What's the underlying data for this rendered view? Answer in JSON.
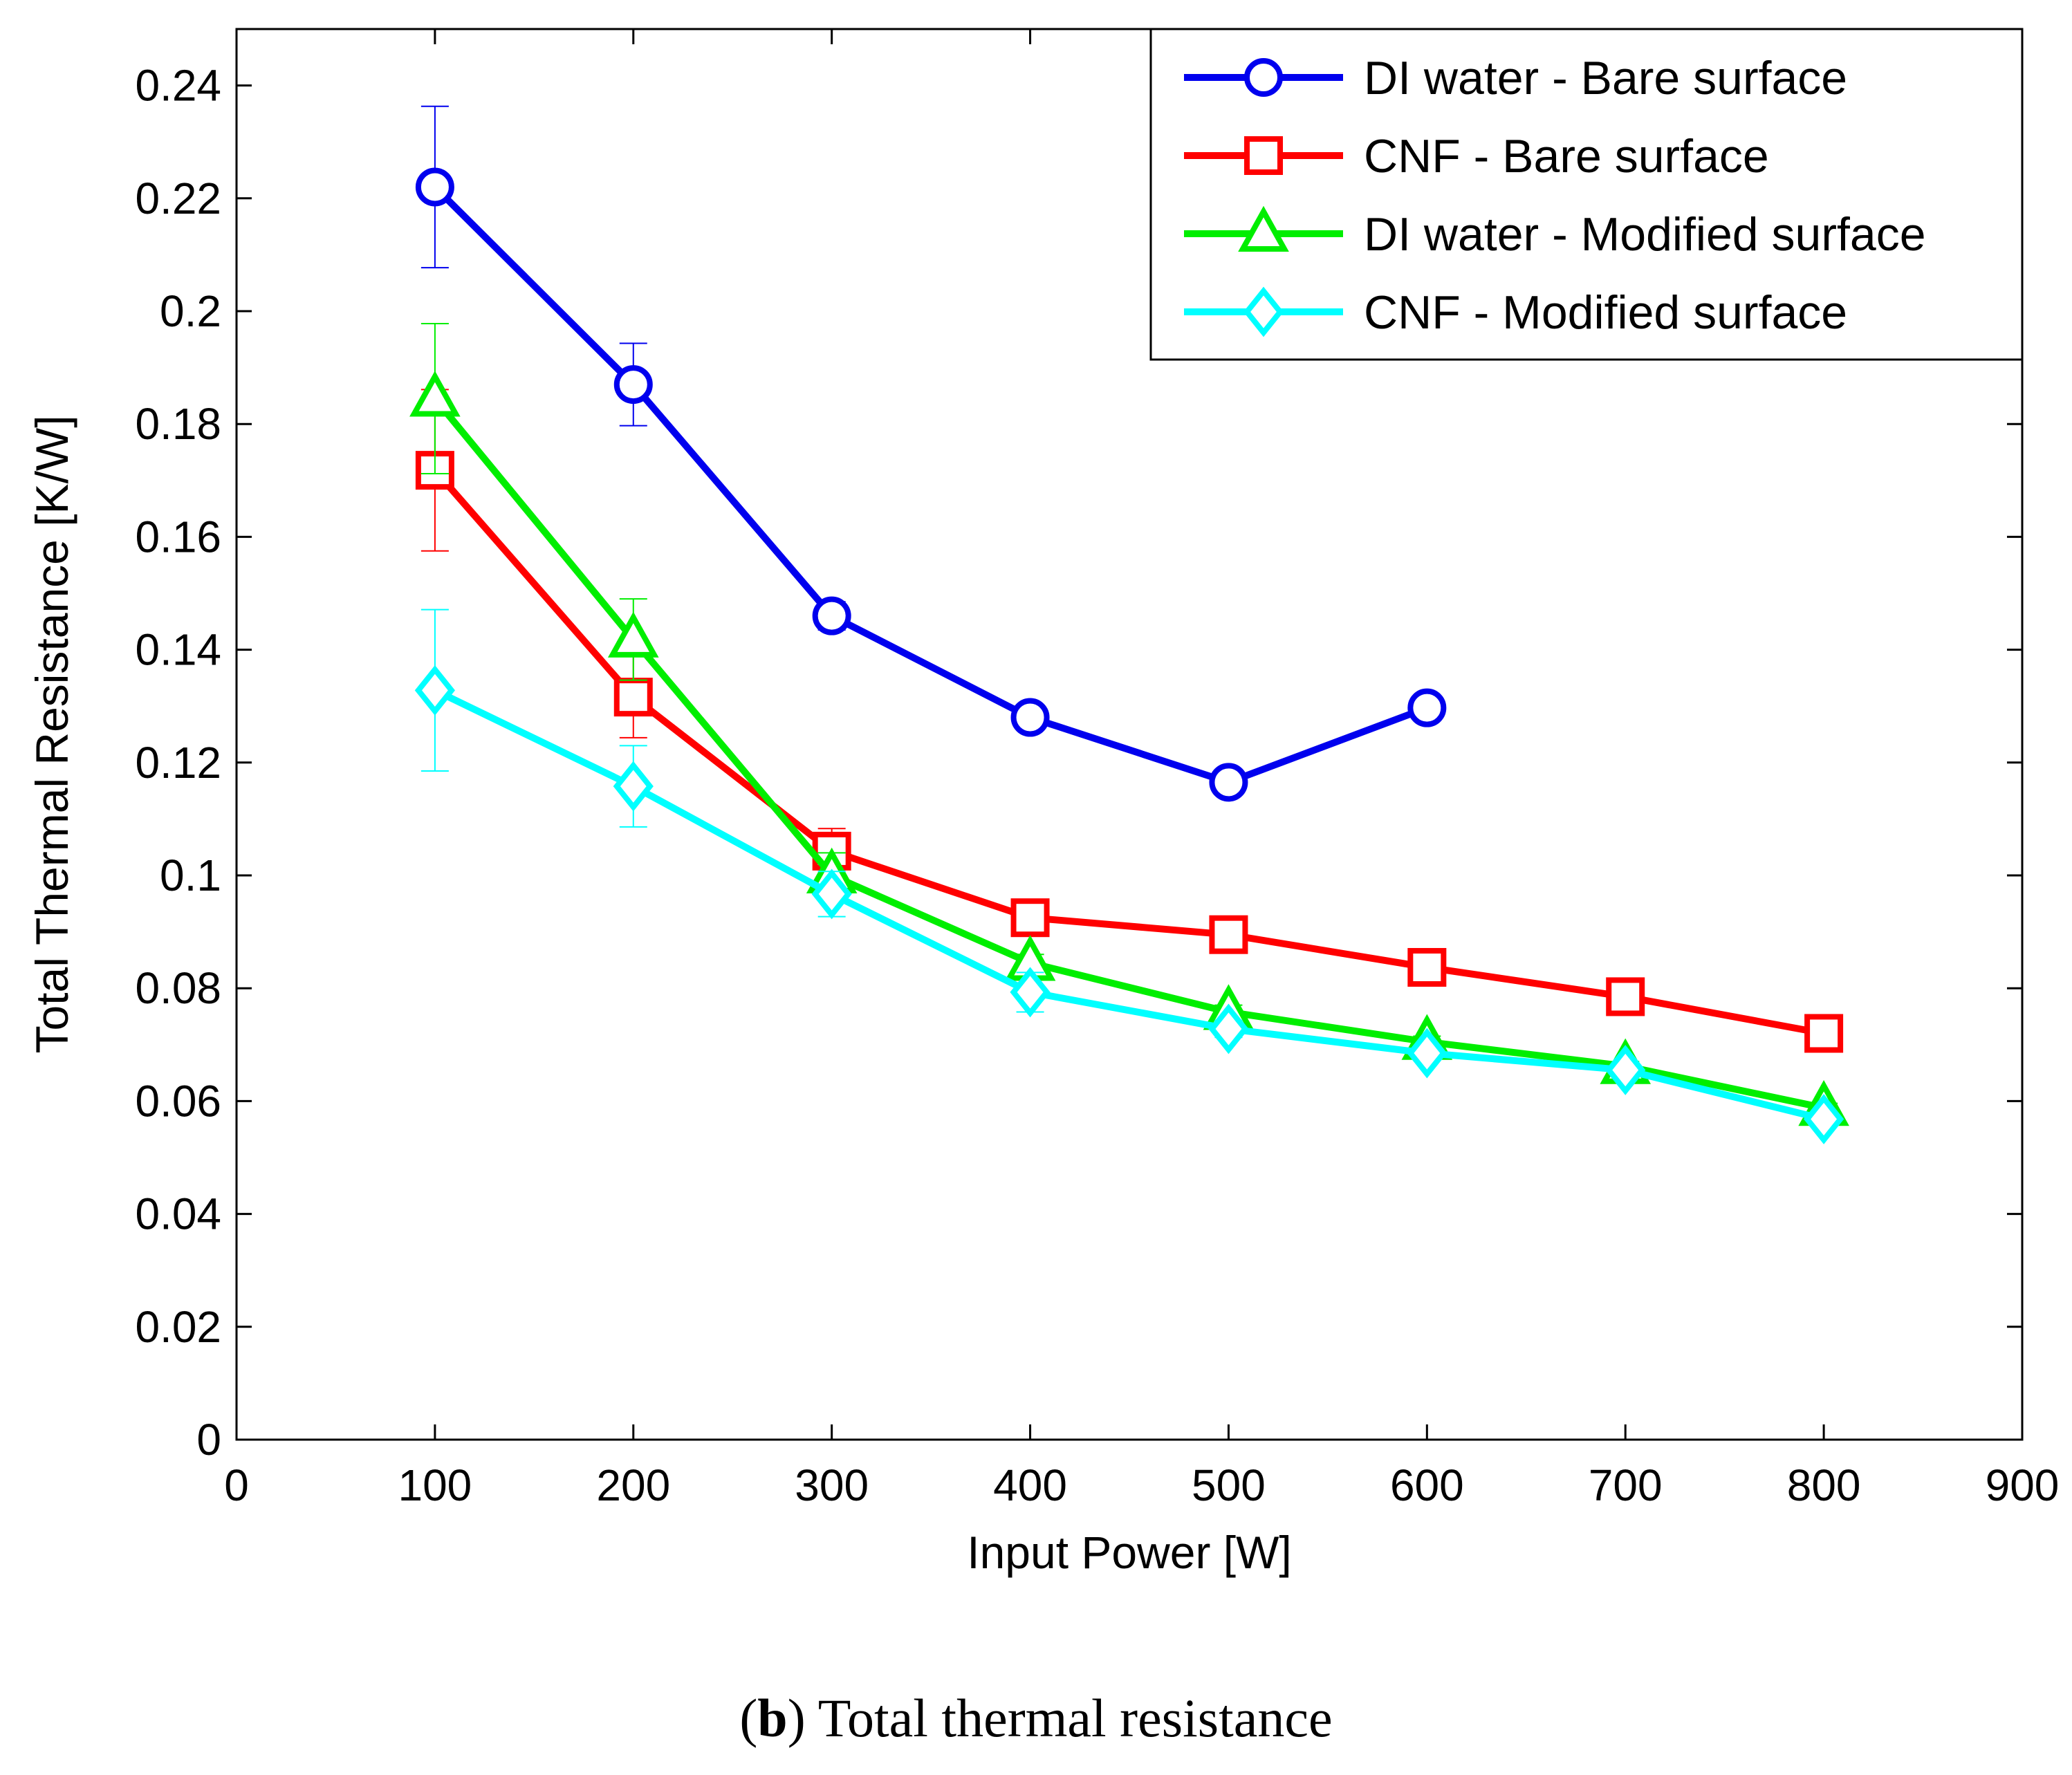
{
  "chart_data": {
    "type": "line",
    "title": "",
    "xlabel": "Input Power [W]",
    "ylabel": "Total Thermal Resistance [K/W]",
    "xlim": [
      0,
      900
    ],
    "ylim": [
      0,
      0.25
    ],
    "xticks": [
      0,
      100,
      200,
      300,
      400,
      500,
      600,
      700,
      800,
      900
    ],
    "xtick_labels": [
      "0",
      "100",
      "200",
      "300",
      "400",
      "500",
      "600",
      "700",
      "800",
      "900"
    ],
    "yticks": [
      0,
      0.02,
      0.04,
      0.06,
      0.08,
      0.1,
      0.12,
      0.14,
      0.16,
      0.18,
      0.2,
      0.22,
      0.24
    ],
    "ytick_labels": [
      "0",
      "0.02",
      "0.04",
      "0.06",
      "0.08",
      "0.1",
      "0.12",
      "0.14",
      "0.16",
      "0.18",
      "0.2",
      "0.22",
      "0.24"
    ],
    "grid": false,
    "legend_position": "top-right",
    "series": [
      {
        "name": "DI water - Bare surface",
        "color": "#0000ee",
        "marker": "circle",
        "x": [
          100,
          200,
          300,
          400,
          500,
          600
        ],
        "y": [
          0.222,
          0.187,
          0.146,
          0.128,
          0.1165,
          0.1297
        ],
        "err": [
          0.0143,
          0.0073,
          0.0025,
          0.0018,
          0.0008,
          0.0018
        ]
      },
      {
        "name": "CNF - Bare surface",
        "color": "#ff0000",
        "marker": "square",
        "x": [
          100,
          200,
          300,
          400,
          500,
          600,
          700,
          800
        ],
        "y": [
          0.1718,
          0.1316,
          0.1043,
          0.0925,
          0.0895,
          0.0837,
          0.0785,
          0.072
        ],
        "err": [
          0.0143,
          0.0072,
          0.004,
          0.0015,
          0.0012,
          0.001,
          0.0008,
          0.0008
        ]
      },
      {
        "name": "DI water - Modified surface",
        "color": "#00ee00",
        "marker": "triangle",
        "x": [
          100,
          200,
          300,
          400,
          500,
          600,
          700,
          800
        ],
        "y": [
          0.1845,
          0.1418,
          0.1,
          0.0845,
          0.0758,
          0.0705,
          0.0662,
          0.0588
        ],
        "err": [
          0.0133,
          0.0072,
          0.004,
          0.0015,
          0.0012,
          0.001,
          0.0008,
          0.0008
        ]
      },
      {
        "name": "CNF - Modified surface",
        "color": "#00ffff",
        "marker": "diamond",
        "x": [
          100,
          200,
          300,
          400,
          500,
          600,
          700,
          800
        ],
        "y": [
          0.1328,
          0.1158,
          0.0967,
          0.0793,
          0.0728,
          0.0685,
          0.0655,
          0.0568
        ],
        "err": [
          0.0143,
          0.0072,
          0.004,
          0.0035,
          0.0015,
          0.001,
          0.0008,
          0.0008
        ]
      }
    ]
  },
  "caption": {
    "letter": "b",
    "text": " Total thermal resistance"
  }
}
